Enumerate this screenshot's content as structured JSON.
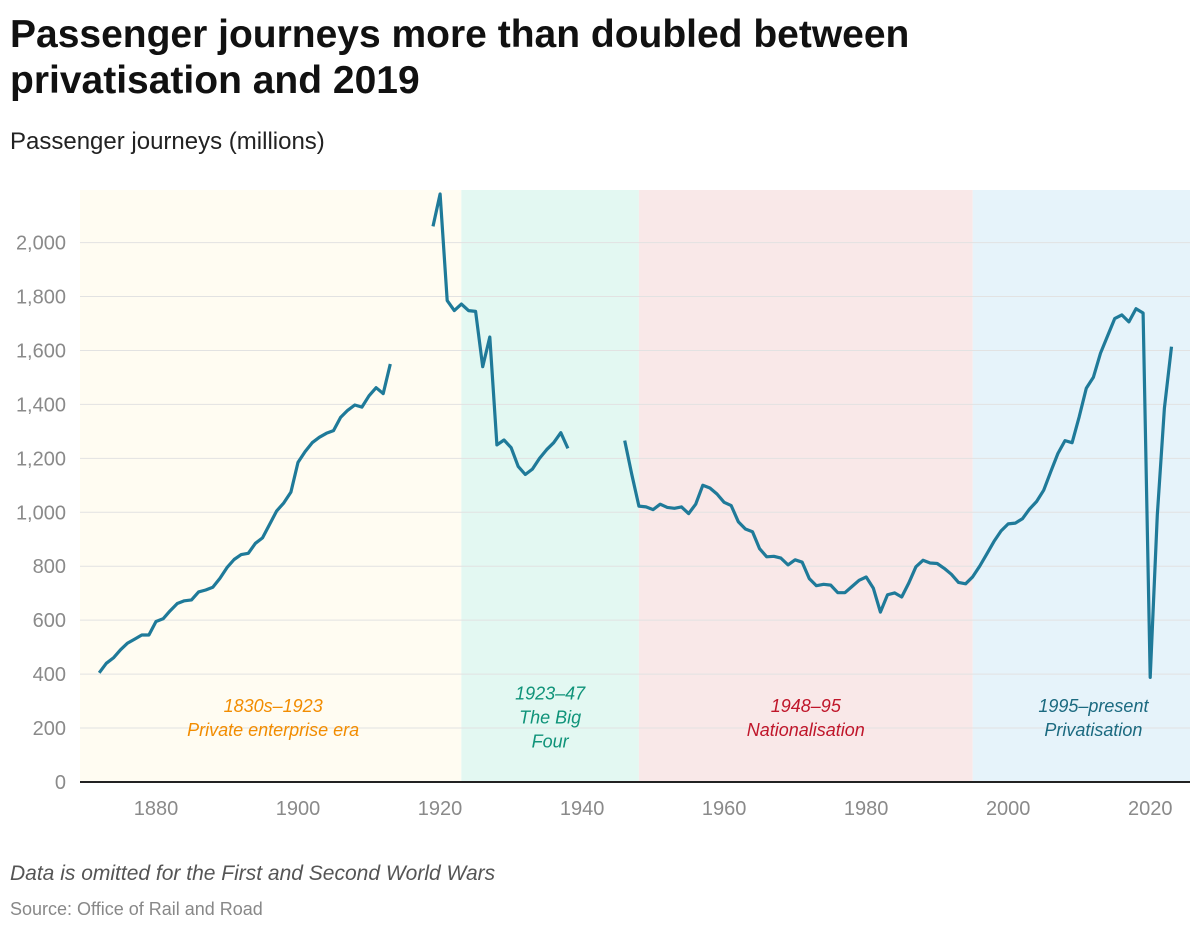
{
  "header": {
    "title": "Passenger journeys more than doubled between privatisation and 2019",
    "subtitle": "Passenger journeys (millions)"
  },
  "footer": {
    "note": "Data is omitted for the First and Second World Wars",
    "source": "Source: Office of Rail and Road"
  },
  "chart_data": {
    "type": "line",
    "title": "Passenger journeys more than doubled between privatisation and 2019",
    "ylabel": "Passenger journeys (millions)",
    "xlabel": "",
    "xlim": [
      1869.3,
      2025.6
    ],
    "ylim": [
      0,
      2195
    ],
    "x_ticks": [
      1880,
      1900,
      1920,
      1940,
      1960,
      1980,
      2000,
      2020
    ],
    "y_ticks": [
      0,
      200,
      400,
      600,
      800,
      1000,
      1200,
      1400,
      1600,
      1800,
      2000
    ],
    "y_tick_labels": [
      "0",
      "200",
      "400",
      "600",
      "800",
      "1,000",
      "1,200",
      "1,400",
      "1,600",
      "1,800",
      "2,000"
    ],
    "grid": true,
    "line_color": "#1f7a99",
    "periods": [
      {
        "start": 1869.3,
        "end": 1923,
        "color": "#fffcf2",
        "text_color": "#f28c00",
        "label_lines": [
          "1830s–1923",
          "Private enterprise era"
        ],
        "label_x": 1896.5,
        "label_y": 260
      },
      {
        "start": 1923,
        "end": 1948,
        "color": "#e3f8f2",
        "text_color": "#0f9379",
        "label_lines": [
          "1923–47",
          "The Big Four"
        ],
        "label_x": 1935.5,
        "label_y": 305
      },
      {
        "start": 1948,
        "end": 1995,
        "color": "#f9e8e8",
        "text_color": "#c0162a",
        "label_lines": [
          "1948–95",
          "Nationalisation"
        ],
        "label_x": 1971.5,
        "label_y": 260
      },
      {
        "start": 1995,
        "end": 2025.6,
        "color": "#e6f3fa",
        "text_color": "#1b6a80",
        "label_lines": [
          "1995–present",
          "Privatisation"
        ],
        "label_x": 2012,
        "label_y": 260
      }
    ],
    "series": [
      {
        "name": "1872-1913",
        "x": [
          1872,
          1873,
          1874,
          1875,
          1876,
          1877,
          1878,
          1879,
          1880,
          1881,
          1882,
          1883,
          1884,
          1885,
          1886,
          1887,
          1888,
          1889,
          1890,
          1891,
          1892,
          1893,
          1894,
          1895,
          1896,
          1897,
          1898,
          1899,
          1900,
          1901,
          1902,
          1903,
          1904,
          1905,
          1906,
          1907,
          1908,
          1909,
          1910,
          1911,
          1912,
          1913
        ],
        "values": [
          405,
          440,
          460,
          490,
          515,
          530,
          545,
          545,
          595,
          605,
          635,
          662,
          672,
          675,
          705,
          712,
          722,
          755,
          795,
          825,
          843,
          848,
          885,
          905,
          955,
          1005,
          1035,
          1075,
          1185,
          1225,
          1258,
          1278,
          1293,
          1303,
          1352,
          1378,
          1398,
          1390,
          1432,
          1462,
          1440,
          1550
        ]
      },
      {
        "name": "1919-1938",
        "x": [
          1919,
          1920,
          1921,
          1922,
          1923,
          1924,
          1925,
          1926,
          1927,
          1928,
          1929,
          1930,
          1931,
          1932,
          1933,
          1934,
          1935,
          1936,
          1937,
          1938
        ],
        "values": [
          2060,
          2180,
          1785,
          1748,
          1772,
          1748,
          1745,
          1540,
          1650,
          1250,
          1268,
          1240,
          1170,
          1140,
          1160,
          1200,
          1232,
          1258,
          1295,
          1237
        ]
      },
      {
        "name": "1946-2023",
        "x": [
          1946,
          1947,
          1948,
          1949,
          1950,
          1951,
          1952,
          1953,
          1954,
          1955,
          1956,
          1957,
          1958,
          1959,
          1960,
          1961,
          1962,
          1963,
          1964,
          1965,
          1966,
          1967,
          1968,
          1969,
          1970,
          1971,
          1972,
          1973,
          1974,
          1975,
          1976,
          1977,
          1978,
          1979,
          1980,
          1981,
          1982,
          1983,
          1984,
          1985,
          1986,
          1987,
          1988,
          1989,
          1990,
          1991,
          1992,
          1993,
          1994,
          1995,
          1996,
          1997,
          1998,
          1999,
          2000,
          2001,
          2002,
          2003,
          2004,
          2005,
          2006,
          2007,
          2008,
          2009,
          2010,
          2011,
          2012,
          2013,
          2014,
          2015,
          2016,
          2017,
          2018,
          2019,
          2020,
          2021,
          2022,
          2023
        ],
        "values": [
          1266,
          1140,
          1023,
          1020,
          1010,
          1030,
          1018,
          1015,
          1020,
          995,
          1030,
          1100,
          1090,
          1068,
          1037,
          1025,
          965,
          938,
          928,
          865,
          835,
          837,
          830,
          805,
          824,
          815,
          754,
          728,
          733,
          730,
          702,
          702,
          725,
          748,
          760,
          719,
          630,
          694,
          701,
          686,
          738,
          798,
          822,
          812,
          810,
          792,
          770,
          740,
          735,
          761,
          801,
          846,
          892,
          931,
          957,
          960,
          976,
          1012,
          1040,
          1082,
          1151,
          1218,
          1266,
          1258,
          1354,
          1460,
          1501,
          1590,
          1654,
          1718,
          1732,
          1706,
          1755,
          1739,
          388,
          990,
          1386,
          1614
        ]
      }
    ]
  }
}
